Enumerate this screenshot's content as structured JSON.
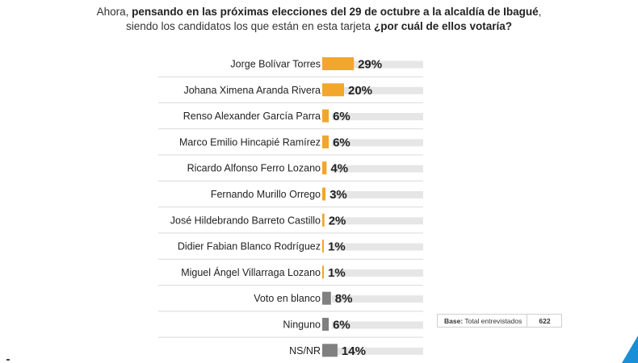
{
  "question": {
    "line1_prefix": "Ahora, ",
    "line1_bold": "pensando en las próximas elecciones del 29 de octubre a la alcaldía de Ibagué",
    "line1_suffix": ",",
    "line2_prefix": "siendo los candidatos los que están en esta tarjeta ",
    "line2_bold": "¿por cuál de ellos votaría?"
  },
  "base": {
    "label_bold": "Base:",
    "label": " Total entrevistados",
    "value": "622"
  },
  "colors": {
    "candidate": "#f2a62b",
    "other": "#808080",
    "track": "#e6e6e6",
    "separator": "#d9d9d9"
  },
  "chart_data": {
    "type": "bar",
    "orientation": "horizontal",
    "categories": [
      "Jorge Bolívar Torres",
      "Johana Ximena Aranda Rivera",
      "Renso Alexander García Parra",
      "Marco Emilio Hincapié Ramírez",
      "Ricardo Alfonso Ferro Lozano",
      "Fernando Murillo Orrego",
      "José Hildebrando Barreto Castillo",
      "Didier Fabian Blanco Rodríguez",
      "Miguel Ángel Villarraga Lozano",
      "Voto en blanco",
      "Ninguno",
      "NS/NR"
    ],
    "values": [
      29,
      20,
      6,
      6,
      4,
      3,
      2,
      1,
      1,
      8,
      6,
      14
    ],
    "labels": [
      "29%",
      "20%",
      "6%",
      "6%",
      "4%",
      "3%",
      "2%",
      "1%",
      "1%",
      "8%",
      "6%",
      "14%"
    ],
    "bar_group": [
      "candidate",
      "candidate",
      "candidate",
      "candidate",
      "candidate",
      "candidate",
      "candidate",
      "candidate",
      "candidate",
      "other",
      "other",
      "other"
    ],
    "unit": "%",
    "xlim": [
      0,
      100
    ]
  }
}
